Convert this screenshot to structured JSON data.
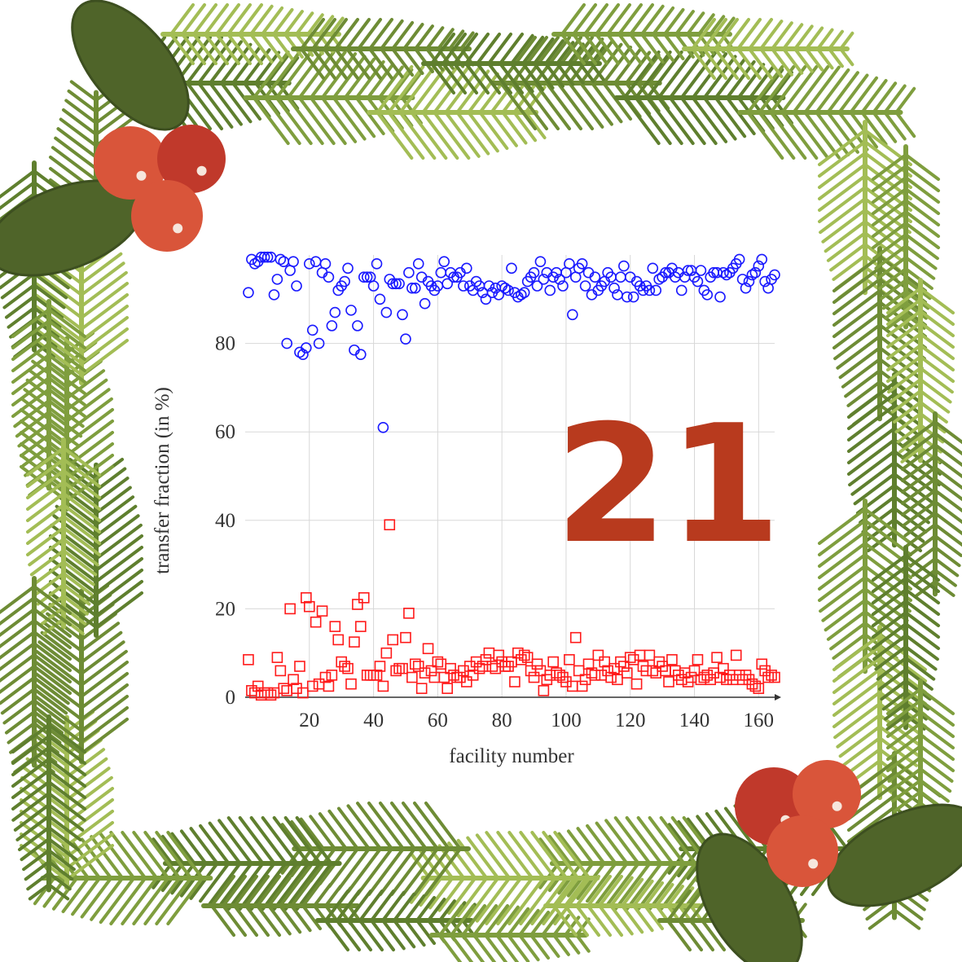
{
  "chart_data": {
    "type": "scatter",
    "annotation": "21",
    "x_label": "facility number",
    "y_label": "transfer fraction (in %)",
    "x": [
      1,
      2,
      3,
      4,
      5,
      6,
      7,
      8,
      9,
      10,
      11,
      12,
      13,
      14,
      15,
      16,
      17,
      18,
      19,
      20,
      21,
      22,
      23,
      24,
      25,
      26,
      27,
      28,
      29,
      30,
      31,
      32,
      33,
      34,
      35,
      36,
      37,
      38,
      39,
      40,
      41,
      42,
      43,
      44,
      45,
      46,
      47,
      48,
      49,
      50,
      51,
      52,
      53,
      54,
      55,
      56,
      57,
      58,
      59,
      60,
      61,
      62,
      63,
      64,
      65,
      66,
      67,
      68,
      69,
      70,
      71,
      72,
      73,
      74,
      75,
      76,
      77,
      78,
      79,
      80,
      81,
      82,
      83,
      84,
      85,
      86,
      87,
      88,
      89,
      90,
      91,
      92,
      93,
      94,
      95,
      96,
      97,
      98,
      99,
      100,
      101,
      102,
      103,
      104,
      105,
      106,
      107,
      108,
      109,
      110,
      111,
      112,
      113,
      114,
      115,
      116,
      117,
      118,
      119,
      120,
      121,
      122,
      123,
      124,
      125,
      126,
      127,
      128,
      129,
      130,
      131,
      132,
      133,
      134,
      135,
      136,
      137,
      138,
      139,
      140,
      141,
      142,
      143,
      144,
      145,
      146,
      147,
      148,
      149,
      150,
      151,
      152,
      153,
      154,
      155,
      156,
      157,
      158,
      159,
      160,
      161,
      162,
      163,
      164,
      165
    ],
    "series": [
      {
        "color": "#1a1aff",
        "marker": "circle",
        "values": [
          91.5,
          99,
          98,
          98.5,
          99.5,
          99.5,
          99.5,
          99.5,
          91,
          94.5,
          99,
          98.5,
          80,
          96.5,
          98.5,
          93,
          78,
          77.5,
          79,
          98,
          83,
          98.5,
          80,
          96,
          98,
          95,
          84,
          87,
          92,
          93,
          94,
          97,
          87.5,
          78.5,
          84,
          77.5,
          95,
          95,
          95,
          93,
          98,
          90,
          61,
          87,
          94.5,
          93.5,
          93.5,
          93.5,
          86.5,
          81,
          96,
          92.5,
          92.5,
          98,
          95,
          89,
          94,
          93,
          92,
          93,
          96,
          98.5,
          93.5,
          96,
          95,
          95,
          96,
          93,
          97,
          93,
          92,
          94,
          93,
          91.5,
          90,
          93,
          91.5,
          92.5,
          91,
          93,
          92.5,
          92,
          97,
          91.5,
          90.5,
          91,
          91.5,
          94,
          95,
          96,
          93,
          98.5,
          94.5,
          96,
          92,
          95,
          96,
          94.5,
          93,
          96,
          98,
          86.5,
          95,
          97,
          98,
          93,
          96,
          91,
          95,
          92,
          93,
          94,
          96,
          95,
          92.5,
          91,
          95,
          97.5,
          90.5,
          95,
          90.5,
          94,
          93,
          92,
          93,
          92,
          97,
          92,
          94.5,
          95,
          96,
          96,
          97,
          95,
          96,
          92,
          95,
          96.5,
          96.5,
          95,
          94,
          96.5,
          92,
          91,
          95,
          96,
          96,
          90.5,
          96,
          95.5,
          96,
          97,
          98,
          99,
          94.5,
          92.5,
          94,
          95.5,
          96,
          97.5,
          99,
          94,
          92.5,
          94.5,
          95.5
        ]
      },
      {
        "color": "#ff1a1a",
        "marker": "square",
        "values": [
          8.5,
          1.5,
          1,
          2.5,
          0.5,
          1,
          1,
          0.5,
          1,
          9,
          6,
          2,
          1.5,
          20,
          4,
          2,
          7,
          1,
          22.5,
          20.5,
          2.5,
          17,
          3,
          19.5,
          4.5,
          2.5,
          5,
          16,
          13,
          8,
          7,
          6.5,
          3,
          12.5,
          21,
          16,
          22.5,
          5,
          5,
          5,
          5,
          7,
          2.5,
          10,
          39,
          13,
          6,
          6.5,
          6.5,
          13.5,
          19,
          4.5,
          7.5,
          7,
          2,
          5.5,
          11,
          6,
          4.5,
          8,
          7.5,
          4.5,
          2,
          6.5,
          5,
          4.5,
          4.5,
          6,
          3.5,
          7,
          5,
          8,
          6.5,
          7,
          8.5,
          10,
          7,
          6.5,
          9.5,
          8,
          7,
          7,
          8,
          3.5,
          10,
          8.5,
          9.5,
          9,
          6,
          4.5,
          7.5,
          6,
          1.5,
          4,
          5,
          8,
          5.5,
          5,
          4.5,
          3.5,
          8.5,
          2.5,
          13.5,
          6,
          2.5,
          4,
          7.5,
          5.5,
          5,
          9.5,
          5,
          8,
          6,
          4.5,
          6.5,
          4,
          8,
          7,
          5.5,
          9,
          8.5,
          3,
          9.5,
          7,
          6,
          9.5,
          6,
          5.5,
          8,
          7,
          6,
          3.5,
          8.5,
          6,
          5,
          4,
          5.5,
          3.5,
          4.5,
          6,
          8.5,
          4,
          4.5,
          5,
          4,
          5.5,
          9,
          4.5,
          6.5,
          4,
          5,
          4,
          9.5,
          5,
          4,
          5,
          4,
          3,
          2.5,
          2,
          7.5,
          6,
          4.5,
          5,
          4.5
        ]
      }
    ],
    "xlim": [
      0,
      165
    ],
    "ylim": [
      0,
      100
    ],
    "xticks": [
      20,
      40,
      60,
      80,
      100,
      120,
      140,
      160
    ],
    "yticks": [
      0,
      20,
      40,
      60,
      80
    ],
    "grid": true
  }
}
